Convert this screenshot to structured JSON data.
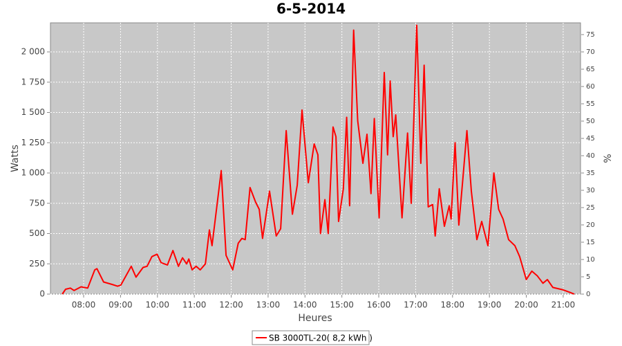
{
  "chart_data": {
    "type": "line",
    "title": "6-5-2014",
    "x_label": "Heures",
    "y_label": "Watts",
    "y2_label": "%",
    "xlim": [
      7.1,
      21.47
    ],
    "xticks": [
      {
        "value": 8,
        "label": "08:00"
      },
      {
        "value": 9,
        "label": "09:00"
      },
      {
        "value": 10,
        "label": "10:00"
      },
      {
        "value": 11,
        "label": "11:00"
      },
      {
        "value": 12,
        "label": "12:00"
      },
      {
        "value": 13,
        "label": "13:00"
      },
      {
        "value": 14,
        "label": "14:00"
      },
      {
        "value": 15,
        "label": "15:00"
      },
      {
        "value": 16,
        "label": "16:00"
      },
      {
        "value": 17,
        "label": "17:00"
      },
      {
        "value": 18,
        "label": "18:00"
      },
      {
        "value": 19,
        "label": "19:00"
      },
      {
        "value": 20,
        "label": "20:00"
      },
      {
        "value": 21,
        "label": "21:00"
      }
    ],
    "ylim": [
      0,
      2240
    ],
    "yticks": [
      0,
      250,
      500,
      750,
      {
        "value": 1000,
        "label": "1 000"
      },
      {
        "value": 1250,
        "label": "1 250"
      },
      {
        "value": 1500,
        "label": "1 500"
      },
      {
        "value": 1750,
        "label": "1 750"
      },
      {
        "value": 2000,
        "label": "2 000"
      }
    ],
    "y2lim": [
      0,
      78.4
    ],
    "y2ticks": [
      0,
      5,
      10,
      15,
      20,
      25,
      30,
      35,
      40,
      45,
      50,
      55,
      60,
      65,
      70,
      75
    ],
    "grid": true,
    "legend": "bottom",
    "x": [
      7.42,
      7.51,
      7.64,
      7.74,
      7.93,
      8.11,
      8.3,
      8.36,
      8.54,
      8.77,
      8.92,
      9.01,
      9.29,
      9.42,
      9.61,
      9.72,
      9.85,
      9.99,
      10.1,
      10.27,
      10.42,
      10.57,
      10.68,
      10.79,
      10.85,
      10.94,
      11.05,
      11.16,
      11.3,
      11.41,
      11.48,
      11.73,
      11.86,
      12.04,
      12.19,
      12.29,
      12.38,
      12.51,
      12.66,
      12.76,
      12.85,
      13.04,
      13.22,
      13.34,
      13.49,
      13.66,
      13.79,
      13.92,
      14.09,
      14.25,
      14.35,
      14.42,
      14.54,
      14.63,
      14.76,
      14.84,
      14.91,
      15.04,
      15.13,
      15.21,
      15.32,
      15.43,
      15.57,
      15.68,
      15.79,
      15.88,
      16.01,
      16.15,
      16.24,
      16.31,
      16.39,
      16.46,
      16.63,
      16.78,
      16.88,
      17.03,
      17.14,
      17.23,
      17.34,
      17.46,
      17.53,
      17.64,
      17.78,
      17.91,
      17.96,
      18.07,
      18.17,
      18.28,
      18.39,
      18.51,
      18.66,
      18.79,
      18.96,
      19.12,
      19.25,
      19.37,
      19.52,
      19.69,
      19.82,
      20.0,
      20.15,
      20.3,
      20.45,
      20.57,
      20.72,
      21.0,
      21.18,
      21.3
    ],
    "series": [
      {
        "name": "SB 3000TL-20( 8,2 kWh )",
        "color": "#ff0000",
        "values": [
          0,
          40,
          50,
          30,
          60,
          50,
          200,
          210,
          100,
          80,
          65,
          75,
          230,
          140,
          220,
          230,
          310,
          330,
          260,
          240,
          360,
          230,
          300,
          250,
          290,
          200,
          230,
          200,
          250,
          530,
          400,
          1020,
          320,
          200,
          420,
          460,
          450,
          880,
          760,
          700,
          460,
          850,
          480,
          540,
          1350,
          660,
          900,
          1520,
          920,
          1240,
          1150,
          500,
          780,
          500,
          1380,
          1300,
          600,
          870,
          1460,
          730,
          2180,
          1430,
          1080,
          1320,
          830,
          1450,
          630,
          1830,
          1150,
          1760,
          1300,
          1480,
          630,
          1330,
          750,
          2220,
          1080,
          1890,
          720,
          740,
          480,
          870,
          560,
          730,
          620,
          1250,
          570,
          950,
          1350,
          850,
          450,
          600,
          400,
          1000,
          700,
          620,
          450,
          400,
          310,
          120,
          190,
          150,
          90,
          120,
          55,
          35,
          15,
          0
        ]
      }
    ]
  }
}
